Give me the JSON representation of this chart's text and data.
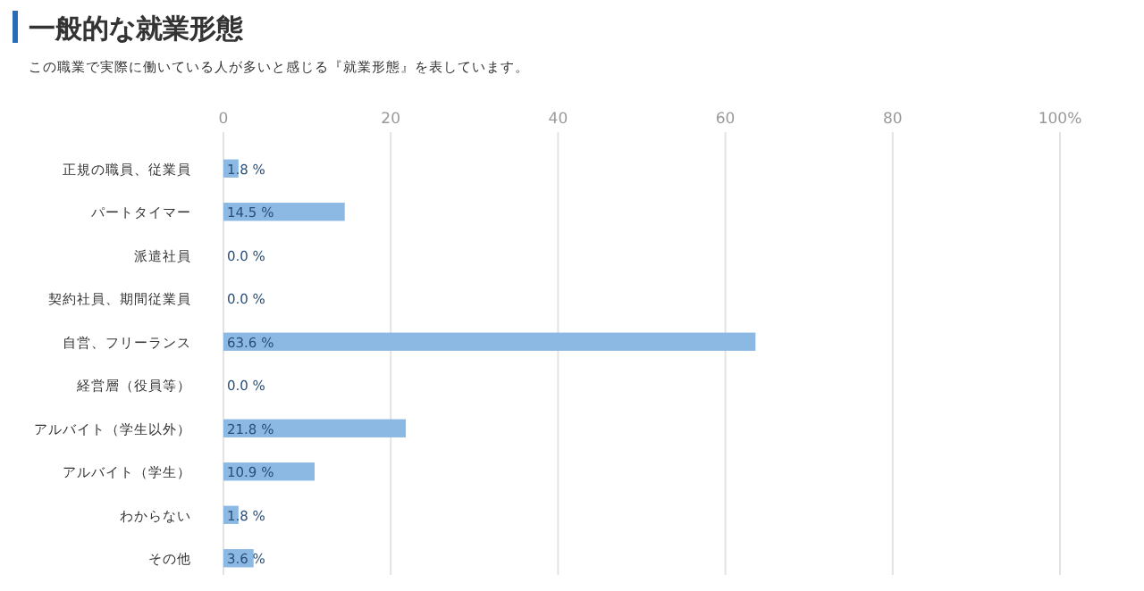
{
  "chart_data": {
    "type": "bar",
    "orientation": "horizontal",
    "title": "一般的な就業形態",
    "subtitle": "この職業で実際に働いている人が多いと感じる『就業形態』を表しています。",
    "categories": [
      "正規の職員、従業員",
      "パートタイマー",
      "派遣社員",
      "契約社員、期間従業員",
      "自営、フリーランス",
      "経営層（役員等）",
      "アルバイト（学生以外）",
      "アルバイト（学生）",
      "わからない",
      "その他"
    ],
    "values": [
      1.8,
      14.5,
      0,
      0,
      63.6,
      0,
      21.8,
      10.9,
      1.8,
      3.6
    ],
    "value_labels": [
      "1.8 %",
      "14.5 %",
      "0.0 %",
      "0.0 %",
      "63.6 %",
      "0.0 %",
      "21.8 %",
      "10.9 %",
      "1.8 %",
      "3.6 %"
    ],
    "color": "#8cb9e3",
    "xlim": [
      0,
      100
    ],
    "xticks": [
      0,
      20,
      40,
      60,
      80,
      {
        "value": 100,
        "label": "100%"
      }
    ],
    "grid": "x"
  }
}
